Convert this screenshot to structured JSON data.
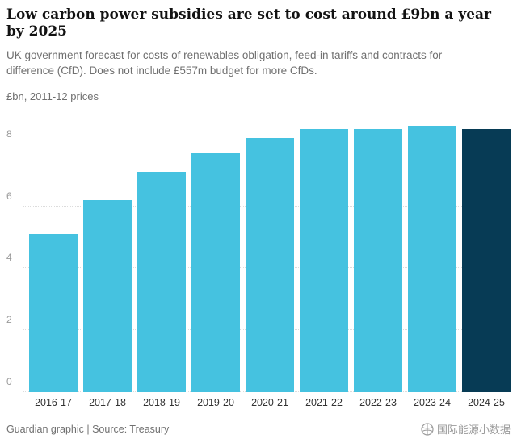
{
  "header": {
    "title": "Low carbon power subsidies are set to cost around £9bn a year by 2025",
    "subtitle": "UK government forecast for costs of renewables obligation, feed-in tariffs and contracts for difference (CfD). Does not include £557m budget for more CfDs.",
    "unit_label": "£bn, 2011-12 prices"
  },
  "chart_data": {
    "type": "bar",
    "title": "Low carbon power subsidies are set to cost around £9bn a year by 2025",
    "categories": [
      "2016-17",
      "2017-18",
      "2018-19",
      "2019-20",
      "2020-21",
      "2021-22",
      "2022-23",
      "2023-24",
      "2024-25"
    ],
    "values": [
      5.1,
      6.2,
      7.1,
      7.7,
      8.2,
      8.5,
      8.5,
      8.6,
      8.5
    ],
    "highlight_index": 8,
    "yticks": [
      0,
      2,
      4,
      6,
      8
    ],
    "ylim": [
      0,
      9
    ],
    "ylabel": "£bn, 2011-12 prices",
    "xlabel": "",
    "grid": true,
    "legend": "none",
    "bar_color": "#45c2e0",
    "highlight_color": "#073b55"
  },
  "footer": {
    "credit": "Guardian graphic | Source: Treasury",
    "watermark": "国际能源小数据"
  }
}
